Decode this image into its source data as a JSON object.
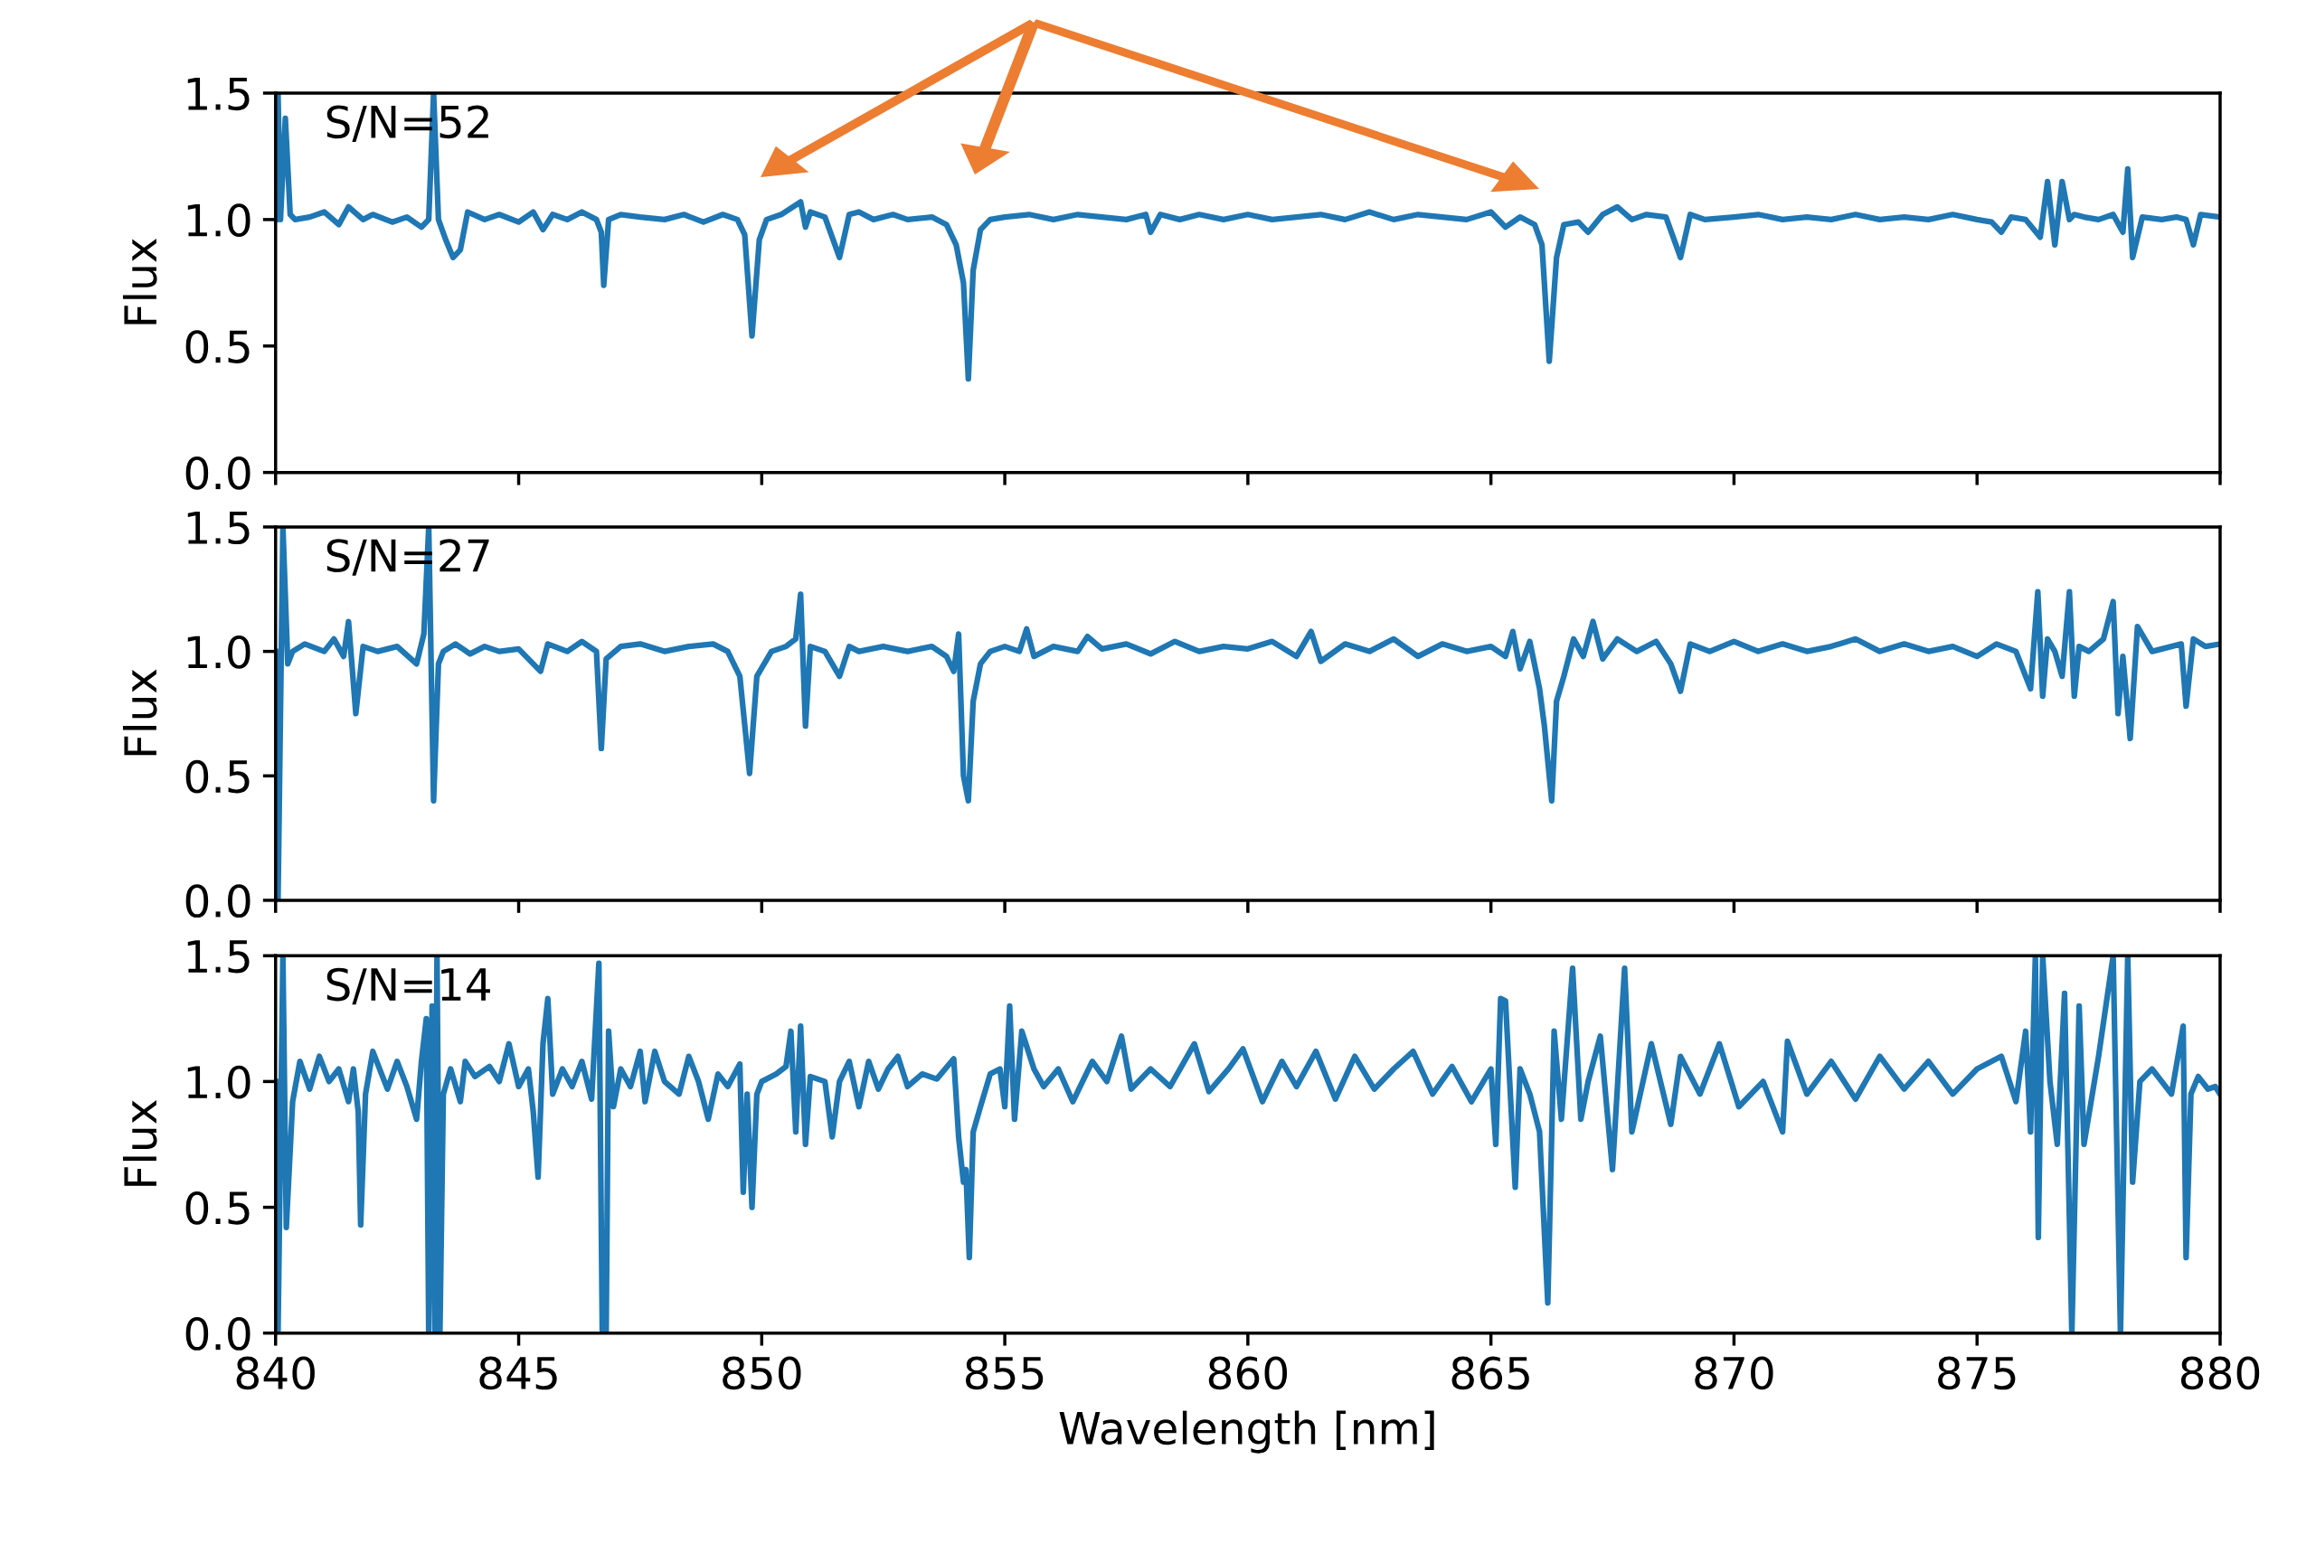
{
  "chart_data": [
    {
      "type": "line",
      "ylabel": "Flux",
      "annotations": [
        "S/N=52"
      ],
      "xlim": [
        840,
        880
      ],
      "ylim": [
        0.0,
        1.5
      ],
      "xticks": [
        840,
        845,
        850,
        855,
        860,
        865,
        870,
        875,
        880
      ],
      "yticks": [
        {
          "value": 0,
          "label": "0.0"
        },
        {
          "value": 0.5,
          "label": "0.5"
        },
        {
          "value": 1,
          "label": "1.0"
        },
        {
          "value": 1.5,
          "label": "1.5"
        }
      ],
      "tick_labels": "y",
      "grid": false,
      "legend": false,
      "x": [
        840.0,
        840.05,
        840.1,
        840.2,
        840.3,
        840.4,
        840.7,
        841.0,
        841.3,
        841.5,
        841.8,
        842.0,
        842.4,
        842.7,
        843.0,
        843.15,
        843.25,
        843.35,
        843.5,
        843.65,
        843.8,
        843.95,
        844.3,
        844.6,
        845.0,
        845.3,
        845.5,
        845.7,
        846.0,
        846.3,
        846.6,
        846.7,
        846.75,
        846.85,
        847.1,
        847.5,
        848.0,
        848.4,
        848.8,
        849.2,
        849.5,
        849.65,
        849.8,
        849.95,
        850.1,
        850.4,
        850.8,
        850.9,
        851.0,
        851.3,
        851.6,
        851.8,
        852.0,
        852.3,
        852.7,
        853.0,
        853.5,
        853.8,
        854.0,
        854.15,
        854.25,
        854.35,
        854.5,
        854.7,
        855.0,
        855.5,
        856.0,
        856.5,
        857.0,
        857.5,
        857.9,
        858.0,
        858.2,
        858.6,
        859.0,
        859.5,
        860.0,
        860.5,
        861.0,
        861.5,
        862.0,
        862.5,
        863.0,
        863.5,
        864.0,
        864.5,
        865.0,
        865.3,
        865.6,
        865.9,
        866.05,
        866.2,
        866.35,
        866.5,
        866.8,
        867.0,
        867.3,
        867.6,
        867.9,
        868.2,
        868.6,
        868.9,
        869.1,
        869.4,
        870.0,
        870.5,
        871.0,
        871.5,
        872.0,
        872.5,
        873.0,
        873.5,
        874.0,
        874.5,
        875.0,
        875.3,
        875.5,
        875.7,
        876.0,
        876.3,
        876.45,
        876.6,
        876.75,
        876.9,
        877.0,
        877.2,
        877.5,
        877.8,
        878.0,
        878.1,
        878.2,
        878.4,
        878.8,
        879.1,
        879.3,
        879.45,
        879.6,
        880.0
      ],
      "series": [
        {
          "color": "#1f77b4",
          "values": [
            1.0,
            1.5,
            1.0,
            1.4,
            1.02,
            1.0,
            1.01,
            1.03,
            0.98,
            1.05,
            1.0,
            1.02,
            0.99,
            1.01,
            0.97,
            1.0,
            1.5,
            1.0,
            0.92,
            0.85,
            0.88,
            1.03,
            1.0,
            1.02,
            0.99,
            1.03,
            0.96,
            1.02,
            1.0,
            1.03,
            1.0,
            0.95,
            0.74,
            1.0,
            1.02,
            1.01,
            1.0,
            1.02,
            0.99,
            1.02,
            1.0,
            0.94,
            0.54,
            0.92,
            1.0,
            1.02,
            1.07,
            0.97,
            1.03,
            1.01,
            0.85,
            1.02,
            1.03,
            1.0,
            1.02,
            1.0,
            1.01,
            0.98,
            0.9,
            0.75,
            0.37,
            0.8,
            0.96,
            1.0,
            1.01,
            1.02,
            1.0,
            1.02,
            1.01,
            1.0,
            1.02,
            0.95,
            1.02,
            1.0,
            1.02,
            1.0,
            1.02,
            1.0,
            1.01,
            1.02,
            1.0,
            1.03,
            1.0,
            1.02,
            1.01,
            1.0,
            1.03,
            0.97,
            1.01,
            0.98,
            0.9,
            0.44,
            0.85,
            0.98,
            0.99,
            0.95,
            1.02,
            1.05,
            1.0,
            1.02,
            1.01,
            0.85,
            1.02,
            1.0,
            1.01,
            1.02,
            1.0,
            1.01,
            1.0,
            1.02,
            1.0,
            1.01,
            1.0,
            1.02,
            1.0,
            0.99,
            0.95,
            1.01,
            1.0,
            0.93,
            1.15,
            0.9,
            1.15,
            1.0,
            1.02,
            1.01,
            1.0,
            1.02,
            0.95,
            1.2,
            0.85,
            1.01,
            1.0,
            1.01,
            1.0,
            0.9,
            1.02,
            1.01
          ]
        }
      ]
    },
    {
      "type": "line",
      "ylabel": "Flux",
      "annotations": [
        "S/N=27"
      ],
      "xlim": [
        840,
        880
      ],
      "ylim": [
        0.0,
        1.5
      ],
      "xticks": [
        840,
        845,
        850,
        855,
        860,
        865,
        870,
        875,
        880
      ],
      "yticks": [
        {
          "value": 0,
          "label": "0.0"
        },
        {
          "value": 0.5,
          "label": "0.5"
        },
        {
          "value": 1,
          "label": "1.0"
        },
        {
          "value": 1.5,
          "label": "1.5"
        }
      ],
      "tick_labels": "y",
      "grid": false,
      "legend": false,
      "x": [
        840.0,
        840.05,
        840.15,
        840.25,
        840.35,
        840.6,
        841.0,
        841.2,
        841.4,
        841.5,
        841.65,
        841.8,
        842.1,
        842.5,
        842.9,
        843.05,
        843.15,
        843.25,
        843.35,
        843.45,
        843.7,
        844.0,
        844.3,
        844.6,
        845.0,
        845.3,
        845.45,
        845.6,
        846.0,
        846.3,
        846.6,
        846.7,
        846.8,
        847.1,
        847.5,
        848.0,
        848.5,
        849.0,
        849.3,
        849.55,
        849.75,
        849.9,
        850.2,
        850.5,
        850.7,
        850.8,
        850.9,
        851.0,
        851.3,
        851.6,
        851.8,
        852.0,
        852.5,
        853.0,
        853.5,
        853.8,
        853.95,
        854.05,
        854.15,
        854.25,
        854.35,
        854.5,
        854.7,
        855.0,
        855.3,
        855.45,
        855.6,
        856.0,
        856.5,
        856.7,
        857.0,
        857.5,
        858.0,
        858.5,
        859.0,
        859.5,
        860.0,
        860.5,
        861.0,
        861.3,
        861.5,
        862.0,
        862.5,
        863.0,
        863.5,
        864.0,
        864.5,
        865.0,
        865.3,
        865.45,
        865.6,
        865.8,
        866.0,
        866.1,
        866.25,
        866.35,
        866.5,
        866.7,
        866.9,
        867.1,
        867.3,
        867.6,
        868.0,
        868.4,
        868.7,
        868.9,
        869.1,
        869.5,
        870.0,
        870.5,
        871.0,
        871.5,
        872.0,
        872.5,
        873.0,
        873.5,
        874.0,
        874.5,
        875.0,
        875.4,
        875.8,
        876.1,
        876.25,
        876.35,
        876.45,
        876.6,
        876.75,
        876.9,
        877.0,
        877.1,
        877.3,
        877.6,
        877.8,
        877.9,
        878.0,
        878.15,
        878.3,
        878.6,
        879.0,
        879.2,
        879.3,
        879.45,
        879.7,
        880.0
      ],
      "series": [
        {
          "color": "#1f77b4",
          "values": [
            1.0,
            0.0,
            1.5,
            0.95,
            1.0,
            1.03,
            1.0,
            1.05,
            0.98,
            1.12,
            0.75,
            1.02,
            1.0,
            1.02,
            0.95,
            1.07,
            1.5,
            0.4,
            0.95,
            1.0,
            1.03,
            0.99,
            1.02,
            1.0,
            1.01,
            0.95,
            0.92,
            1.03,
            1.0,
            1.04,
            1.0,
            0.61,
            0.97,
            1.02,
            1.03,
            1.0,
            1.02,
            1.03,
            1.0,
            0.9,
            0.51,
            0.9,
            1.0,
            1.02,
            1.05,
            1.23,
            0.7,
            1.02,
            1.0,
            0.9,
            1.02,
            1.0,
            1.02,
            1.0,
            1.02,
            0.98,
            0.92,
            1.07,
            0.5,
            0.4,
            0.8,
            0.95,
            1.0,
            1.02,
            1.0,
            1.09,
            0.98,
            1.02,
            1.0,
            1.06,
            1.01,
            1.03,
            0.99,
            1.04,
            1.0,
            1.02,
            1.01,
            1.04,
            0.98,
            1.08,
            0.96,
            1.03,
            1.0,
            1.05,
            0.98,
            1.03,
            1.0,
            1.02,
            0.98,
            1.08,
            0.93,
            1.04,
            0.85,
            0.7,
            0.4,
            0.8,
            0.9,
            1.05,
            0.98,
            1.12,
            0.97,
            1.05,
            1.0,
            1.04,
            0.95,
            0.84,
            1.03,
            1.0,
            1.04,
            1.0,
            1.03,
            1.0,
            1.02,
            1.05,
            1.0,
            1.03,
            1.0,
            1.02,
            0.98,
            1.03,
            1.0,
            0.85,
            1.24,
            0.82,
            1.05,
            1.0,
            0.9,
            1.24,
            0.82,
            1.02,
            1.0,
            1.05,
            1.2,
            0.75,
            0.98,
            0.65,
            1.1,
            1.0,
            1.02,
            1.03,
            0.78,
            1.05,
            1.02,
            1.03
          ]
        }
      ]
    },
    {
      "type": "line",
      "ylabel": "Flux",
      "xlabel": "Wavelength [nm]",
      "annotations": [
        "S/N=14"
      ],
      "xlim": [
        840,
        880
      ],
      "ylim": [
        0.0,
        1.5
      ],
      "xticks": [
        840,
        845,
        850,
        855,
        860,
        865,
        870,
        875,
        880
      ],
      "yticks": [
        {
          "value": 0,
          "label": "0.0"
        },
        {
          "value": 0.5,
          "label": "0.5"
        },
        {
          "value": 1,
          "label": "1.0"
        },
        {
          "value": 1.5,
          "label": "1.5"
        }
      ],
      "grid": false,
      "legend": false,
      "x": [
        840.0,
        840.05,
        840.15,
        840.22,
        840.35,
        840.5,
        840.7,
        840.9,
        841.1,
        841.3,
        841.5,
        841.6,
        841.7,
        841.75,
        841.85,
        842.0,
        842.3,
        842.5,
        842.7,
        842.9,
        843.0,
        843.1,
        843.15,
        843.22,
        843.28,
        843.32,
        843.38,
        843.45,
        843.6,
        843.8,
        843.9,
        844.1,
        844.4,
        844.6,
        844.8,
        845.0,
        845.2,
        845.3,
        845.4,
        845.5,
        845.6,
        845.7,
        845.9,
        846.1,
        846.3,
        846.5,
        846.65,
        846.72,
        846.8,
        846.85,
        846.95,
        847.1,
        847.3,
        847.5,
        847.6,
        847.8,
        848.0,
        848.3,
        848.5,
        848.7,
        848.9,
        849.1,
        849.3,
        849.55,
        849.62,
        849.7,
        849.8,
        849.9,
        850.0,
        850.3,
        850.5,
        850.6,
        850.7,
        850.8,
        850.9,
        851.0,
        851.3,
        851.45,
        851.6,
        851.8,
        852.0,
        852.2,
        852.4,
        852.6,
        852.8,
        853.0,
        853.3,
        853.6,
        853.95,
        854.05,
        854.15,
        854.2,
        854.27,
        854.35,
        854.5,
        854.7,
        854.9,
        855.0,
        855.1,
        855.2,
        855.35,
        855.6,
        855.8,
        856.1,
        856.4,
        856.8,
        857.1,
        857.4,
        857.6,
        858.0,
        858.4,
        858.9,
        859.2,
        859.6,
        859.9,
        860.3,
        860.7,
        861.0,
        861.4,
        861.8,
        862.2,
        862.6,
        863.0,
        863.4,
        863.8,
        864.2,
        864.6,
        865.0,
        865.1,
        865.2,
        865.3,
        865.5,
        865.6,
        865.8,
        866.0,
        866.17,
        866.3,
        866.45,
        866.68,
        866.85,
        867.0,
        867.25,
        867.5,
        867.75,
        867.9,
        868.3,
        868.7,
        868.9,
        869.3,
        869.7,
        870.1,
        870.6,
        871.0,
        871.1,
        871.5,
        872.0,
        872.5,
        873.0,
        873.5,
        874.0,
        874.5,
        875.0,
        875.5,
        875.8,
        876.0,
        876.1,
        876.2,
        876.26,
        876.35,
        876.5,
        876.65,
        876.8,
        876.95,
        877.1,
        877.2,
        877.5,
        877.8,
        877.95,
        878.1,
        878.2,
        878.35,
        878.6,
        879.0,
        879.24,
        879.3,
        879.4,
        879.55,
        879.75,
        879.9,
        880.0
      ],
      "series": [
        {
          "color": "#1f77b4",
          "values": [
            1.0,
            0.0,
            1.5,
            0.42,
            0.92,
            1.08,
            0.97,
            1.1,
            1.0,
            1.05,
            0.92,
            1.05,
            0.88,
            0.43,
            0.95,
            1.12,
            0.97,
            1.08,
            0.98,
            0.85,
            1.08,
            1.25,
            0.0,
            1.3,
            0.0,
            1.5,
            0.0,
            0.95,
            1.05,
            0.92,
            1.08,
            1.02,
            1.06,
            1.0,
            1.15,
            0.98,
            1.05,
            0.88,
            0.62,
            1.15,
            1.33,
            0.95,
            1.05,
            0.98,
            1.08,
            0.93,
            1.47,
            0.0,
            0.0,
            1.2,
            0.9,
            1.05,
            0.98,
            1.12,
            0.92,
            1.12,
            1.0,
            0.95,
            1.1,
            1.0,
            0.85,
            1.03,
            0.98,
            1.07,
            0.56,
            0.95,
            0.5,
            0.95,
            1.0,
            1.03,
            1.06,
            1.2,
            0.8,
            1.22,
            0.75,
            1.02,
            1.0,
            0.78,
            1.0,
            1.08,
            0.9,
            1.08,
            0.97,
            1.05,
            1.1,
            0.98,
            1.03,
            1.01,
            1.09,
            0.78,
            0.6,
            0.65,
            0.3,
            0.8,
            0.9,
            1.03,
            1.05,
            0.9,
            1.3,
            0.85,
            1.2,
            1.05,
            0.98,
            1.05,
            0.92,
            1.08,
            1.0,
            1.18,
            0.97,
            1.05,
            0.98,
            1.15,
            0.96,
            1.05,
            1.13,
            0.92,
            1.08,
            0.98,
            1.12,
            0.93,
            1.1,
            0.97,
            1.05,
            1.12,
            0.95,
            1.06,
            0.92,
            1.05,
            0.75,
            1.33,
            1.32,
            0.58,
            1.05,
            0.95,
            0.8,
            0.12,
            1.2,
            0.85,
            1.45,
            0.85,
            1.0,
            1.18,
            0.65,
            1.45,
            0.8,
            1.15,
            0.83,
            1.1,
            0.95,
            1.15,
            0.9,
            1.0,
            0.8,
            1.16,
            0.95,
            1.08,
            0.93,
            1.1,
            0.97,
            1.08,
            0.95,
            1.05,
            1.1,
            0.92,
            1.2,
            0.8,
            1.5,
            0.38,
            1.5,
            1.0,
            0.75,
            1.35,
            0.0,
            1.3,
            0.75,
            1.1,
            1.5,
            0.0,
            1.5,
            0.6,
            1.0,
            1.05,
            0.95,
            1.22,
            0.3,
            0.95,
            1.02,
            0.97,
            0.98,
            0.95
          ]
        }
      ]
    }
  ]
}
